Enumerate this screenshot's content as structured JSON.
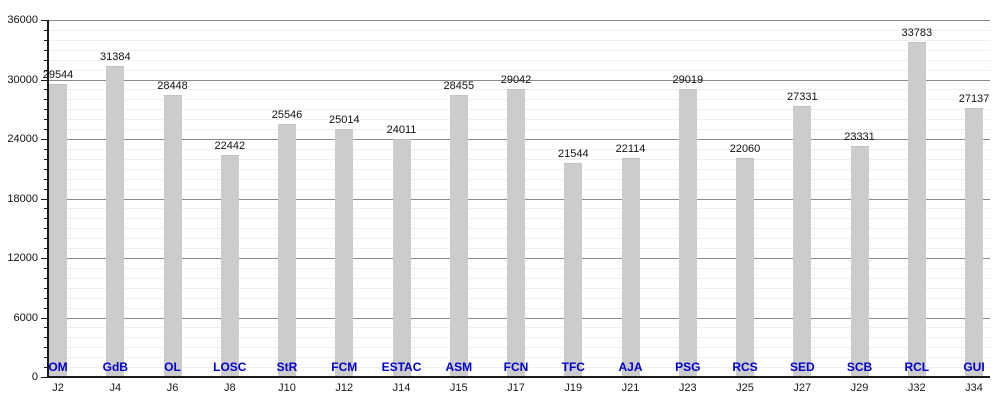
{
  "chart_data": {
    "type": "bar",
    "title": "",
    "xlabel": "",
    "ylabel": "",
    "categories": [
      "J2",
      "J4",
      "J6",
      "J8",
      "J10",
      "J12",
      "J14",
      "J15",
      "J17",
      "J19",
      "J21",
      "J23",
      "J25",
      "J27",
      "J29",
      "J32",
      "J34"
    ],
    "bar_labels": [
      "OM",
      "GdB",
      "OL",
      "LOSC",
      "StR",
      "FCM",
      "ESTAC",
      "ASM",
      "FCN",
      "TFC",
      "AJA",
      "PSG",
      "RCS",
      "SED",
      "SCB",
      "RCL",
      "GUI"
    ],
    "values": [
      29544,
      31384,
      28448,
      22442,
      25546,
      25014,
      24011,
      28455,
      29042,
      21544,
      22114,
      29019,
      22060,
      27331,
      23331,
      33783,
      27137
    ],
    "ylim": [
      0,
      36000
    ],
    "y_major_ticks": [
      0,
      6000,
      12000,
      18000,
      24000,
      30000,
      36000
    ],
    "y_minor_step": 1000,
    "grid": true,
    "legend": "none",
    "colors": {
      "bar_fill": "#cccccc",
      "club_label": "#0000cc",
      "value_label": "#111111",
      "axis": "#1a1a1a",
      "major_grid": "#8a8a8a",
      "minor_grid": "#efefef"
    }
  }
}
